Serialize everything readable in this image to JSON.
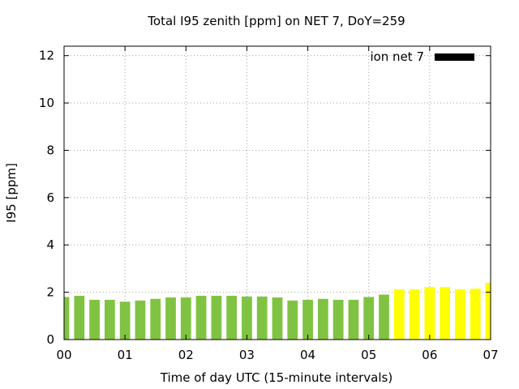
{
  "chart_data": {
    "type": "bar",
    "title": "Total I95 zenith [ppm] on NET 7, DoY=259",
    "xlabel": "Time of day UTC (15-minute intervals)",
    "ylabel": "I95 [ppm]",
    "xlim": [
      0,
      7
    ],
    "ylim": [
      0,
      12.4
    ],
    "x_ticks": [
      "00",
      "01",
      "02",
      "03",
      "04",
      "05",
      "06",
      "07"
    ],
    "y_ticks": [
      "0",
      "2",
      "4",
      "6",
      "8",
      "10",
      "12"
    ],
    "grid": true,
    "legend": {
      "position": "top-right",
      "entries": [
        {
          "label": "ion net 7",
          "color": "#000000"
        }
      ]
    },
    "colors": {
      "historical": "#80c342",
      "current": "#ffff00"
    },
    "bar_width_hours": 0.17,
    "series": [
      {
        "name": "ion net 7",
        "x": [
          0.0,
          0.25,
          0.5,
          0.75,
          1.0,
          1.25,
          1.5,
          1.75,
          2.0,
          2.25,
          2.5,
          2.75,
          3.0,
          3.25,
          3.5,
          3.75,
          4.0,
          4.25,
          4.5,
          4.75,
          5.0,
          5.25,
          5.5,
          5.75,
          6.0,
          6.25,
          6.5,
          6.75,
          7.0
        ],
        "values": [
          1.8,
          1.85,
          1.68,
          1.68,
          1.6,
          1.65,
          1.72,
          1.78,
          1.78,
          1.85,
          1.85,
          1.85,
          1.82,
          1.82,
          1.78,
          1.65,
          1.68,
          1.72,
          1.68,
          1.68,
          1.8,
          1.9,
          2.12,
          2.12,
          2.22,
          2.22,
          2.12,
          2.15,
          2.4
        ],
        "color_group": [
          "historical",
          "historical",
          "historical",
          "historical",
          "historical",
          "historical",
          "historical",
          "historical",
          "historical",
          "historical",
          "historical",
          "historical",
          "historical",
          "historical",
          "historical",
          "historical",
          "historical",
          "historical",
          "historical",
          "historical",
          "historical",
          "historical",
          "current",
          "current",
          "current",
          "current",
          "current",
          "current",
          "current"
        ]
      }
    ]
  }
}
